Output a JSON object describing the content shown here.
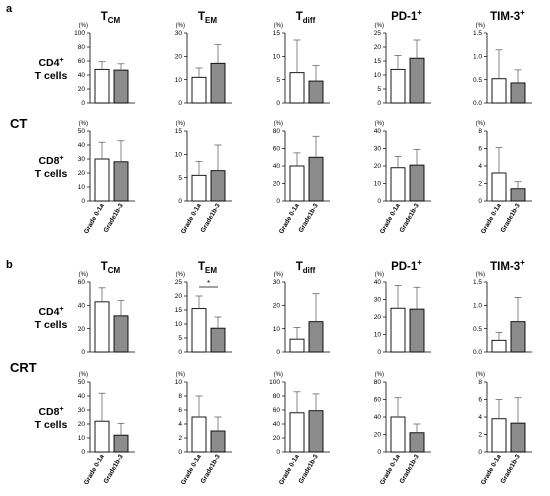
{
  "panels": [
    {
      "letter": "a",
      "group": "CT"
    },
    {
      "letter": "b",
      "group": "CRT"
    }
  ],
  "columns": [
    {
      "base": "T",
      "sub": "CM",
      "sup": ""
    },
    {
      "base": "T",
      "sub": "EM",
      "sup": ""
    },
    {
      "base": "T",
      "sub": "diff",
      "sup": ""
    },
    {
      "base": "PD-1",
      "sub": "",
      "sup": "+"
    },
    {
      "base": "TIM-3",
      "sub": "",
      "sup": "+"
    }
  ],
  "rows": [
    {
      "line1": "CD4",
      "sup": "+",
      "line2": "T cells"
    },
    {
      "line1": "CD8",
      "sup": "+",
      "line2": "T cells"
    }
  ],
  "unit_label": "(%)",
  "significance_mark": "*",
  "colors": {
    "bar1": "#ffffff",
    "bar2": "#8c8c8c",
    "stroke": "#000000"
  },
  "chart_data": [
    {
      "type": "bar",
      "panel": "a",
      "row": "CD4",
      "column": "TCM",
      "categories": [
        "Grade 0-1a",
        "Grade1b-3"
      ],
      "values": [
        48,
        47
      ],
      "error": [
        11,
        9
      ],
      "ylim": [
        0,
        100
      ],
      "yticks": [
        0,
        20,
        40,
        60,
        80,
        100
      ]
    },
    {
      "type": "bar",
      "panel": "a",
      "row": "CD4",
      "column": "TEM",
      "categories": [
        "Grade 0-1a",
        "Grade1b-3"
      ],
      "values": [
        11,
        17
      ],
      "error": [
        4,
        8
      ],
      "ylim": [
        0,
        30
      ],
      "yticks": [
        0,
        10,
        20,
        30
      ]
    },
    {
      "type": "bar",
      "panel": "a",
      "row": "CD4",
      "column": "Tdiff",
      "categories": [
        "Grade 0-1a",
        "Grade1b-3"
      ],
      "values": [
        6.5,
        4.7
      ],
      "error": [
        7,
        3.3
      ],
      "ylim": [
        0,
        15
      ],
      "yticks": [
        0,
        5,
        10,
        15
      ]
    },
    {
      "type": "bar",
      "panel": "a",
      "row": "CD4",
      "column": "PD-1+",
      "categories": [
        "Grade 0-1a",
        "Grade1b-3"
      ],
      "values": [
        12,
        16
      ],
      "error": [
        5,
        6.5
      ],
      "ylim": [
        0,
        25
      ],
      "yticks": [
        0,
        5,
        10,
        15,
        20,
        25
      ]
    },
    {
      "type": "bar",
      "panel": "a",
      "row": "CD4",
      "column": "TIM-3+",
      "categories": [
        "Grade 0-1a",
        "Grade1b-3"
      ],
      "values": [
        0.52,
        0.43
      ],
      "error": [
        0.62,
        0.28
      ],
      "ylim": [
        0,
        1.5
      ],
      "yticks": [
        0,
        0.5,
        1.0,
        1.5
      ],
      "tick_format": "1dp"
    },
    {
      "type": "bar",
      "panel": "a",
      "row": "CD8",
      "column": "TCM",
      "categories": [
        "Grade 0-1a",
        "Grade1b-3"
      ],
      "values": [
        30,
        28
      ],
      "error": [
        12,
        15
      ],
      "ylim": [
        0,
        50
      ],
      "yticks": [
        0,
        10,
        20,
        30,
        40,
        50
      ]
    },
    {
      "type": "bar",
      "panel": "a",
      "row": "CD8",
      "column": "TEM",
      "categories": [
        "Grade 0-1a",
        "Grade1b-3"
      ],
      "values": [
        5.5,
        6.5
      ],
      "error": [
        3,
        5.5
      ],
      "ylim": [
        0,
        15
      ],
      "yticks": [
        0,
        5,
        10,
        15
      ]
    },
    {
      "type": "bar",
      "panel": "a",
      "row": "CD8",
      "column": "Tdiff",
      "categories": [
        "Grade 0-1a",
        "Grade1b-3"
      ],
      "values": [
        40,
        50
      ],
      "error": [
        15,
        24
      ],
      "ylim": [
        0,
        80
      ],
      "yticks": [
        0,
        20,
        40,
        60,
        80
      ]
    },
    {
      "type": "bar",
      "panel": "a",
      "row": "CD8",
      "column": "PD-1+",
      "categories": [
        "Grade 0-1a",
        "Grade1b-3"
      ],
      "values": [
        19,
        20.5
      ],
      "error": [
        6.5,
        9
      ],
      "ylim": [
        0,
        40
      ],
      "yticks": [
        0,
        10,
        20,
        30,
        40
      ]
    },
    {
      "type": "bar",
      "panel": "a",
      "row": "CD8",
      "column": "TIM-3+",
      "categories": [
        "Grade 0-1a",
        "Grade1b-3"
      ],
      "values": [
        3.2,
        1.4
      ],
      "error": [
        2.9,
        0.8
      ],
      "ylim": [
        0,
        8
      ],
      "yticks": [
        0,
        2,
        4,
        6,
        8
      ]
    },
    {
      "type": "bar",
      "panel": "b",
      "row": "CD4",
      "column": "TCM",
      "categories": [
        "Grade 0-1a",
        "Grade1b-3"
      ],
      "values": [
        43,
        31
      ],
      "error": [
        12,
        13
      ],
      "ylim": [
        0,
        60
      ],
      "yticks": [
        0,
        20,
        40,
        60
      ]
    },
    {
      "type": "bar",
      "panel": "b",
      "row": "CD4",
      "column": "TEM",
      "categories": [
        "Grade 0-1a",
        "Grade1b-3"
      ],
      "values": [
        15.5,
        8.5
      ],
      "error": [
        4.5,
        4
      ],
      "ylim": [
        0,
        25
      ],
      "yticks": [
        0,
        5,
        10,
        15,
        20,
        25
      ],
      "significance": true
    },
    {
      "type": "bar",
      "panel": "b",
      "row": "CD4",
      "column": "Tdiff",
      "categories": [
        "Grade 0-1a",
        "Grade1b-3"
      ],
      "values": [
        5.5,
        13
      ],
      "error": [
        5,
        12
      ],
      "ylim": [
        0,
        30
      ],
      "yticks": [
        0,
        10,
        20,
        30
      ]
    },
    {
      "type": "bar",
      "panel": "b",
      "row": "CD4",
      "column": "PD-1+",
      "categories": [
        "Grade 0-1a",
        "Grade1b-3"
      ],
      "values": [
        25,
        24.5
      ],
      "error": [
        13,
        12.5
      ],
      "ylim": [
        0,
        40
      ],
      "yticks": [
        0,
        10,
        20,
        30,
        40
      ]
    },
    {
      "type": "bar",
      "panel": "b",
      "row": "CD4",
      "column": "TIM-3+",
      "categories": [
        "Grade 0-1a",
        "Grade1b-3"
      ],
      "values": [
        0.25,
        0.65
      ],
      "error": [
        0.17,
        0.52
      ],
      "ylim": [
        0,
        1.5
      ],
      "yticks": [
        0,
        0.5,
        1.0,
        1.5
      ],
      "tick_format": "1dp"
    },
    {
      "type": "bar",
      "panel": "b",
      "row": "CD8",
      "column": "TCM",
      "categories": [
        "Grade 0-1a",
        "Grade1b-3"
      ],
      "values": [
        22,
        12
      ],
      "error": [
        20,
        8.5
      ],
      "ylim": [
        0,
        50
      ],
      "yticks": [
        0,
        10,
        20,
        30,
        40,
        50
      ]
    },
    {
      "type": "bar",
      "panel": "b",
      "row": "CD8",
      "column": "TEM",
      "categories": [
        "Grade 0-1a",
        "Grade1b-3"
      ],
      "values": [
        5,
        3
      ],
      "error": [
        3,
        2
      ],
      "ylim": [
        0,
        10
      ],
      "yticks": [
        0,
        2,
        4,
        6,
        8,
        10
      ]
    },
    {
      "type": "bar",
      "panel": "b",
      "row": "CD8",
      "column": "Tdiff",
      "categories": [
        "Grade 0-1a",
        "Grade1b-3"
      ],
      "values": [
        56,
        59
      ],
      "error": [
        30,
        24
      ],
      "ylim": [
        0,
        100
      ],
      "yticks": [
        0,
        20,
        40,
        60,
        80,
        100
      ]
    },
    {
      "type": "bar",
      "panel": "b",
      "row": "CD8",
      "column": "PD-1+",
      "categories": [
        "Grade 0-1a",
        "Grade1b-3"
      ],
      "values": [
        40,
        22
      ],
      "error": [
        22,
        10
      ],
      "ylim": [
        0,
        80
      ],
      "yticks": [
        0,
        20,
        40,
        60,
        80
      ]
    },
    {
      "type": "bar",
      "panel": "b",
      "row": "CD8",
      "column": "TIM-3+",
      "categories": [
        "Grade 0-1a",
        "Grade1b-3"
      ],
      "values": [
        3.8,
        3.3
      ],
      "error": [
        2.2,
        2.9
      ],
      "ylim": [
        0,
        8
      ],
      "yticks": [
        0,
        2,
        4,
        6,
        8
      ]
    }
  ]
}
